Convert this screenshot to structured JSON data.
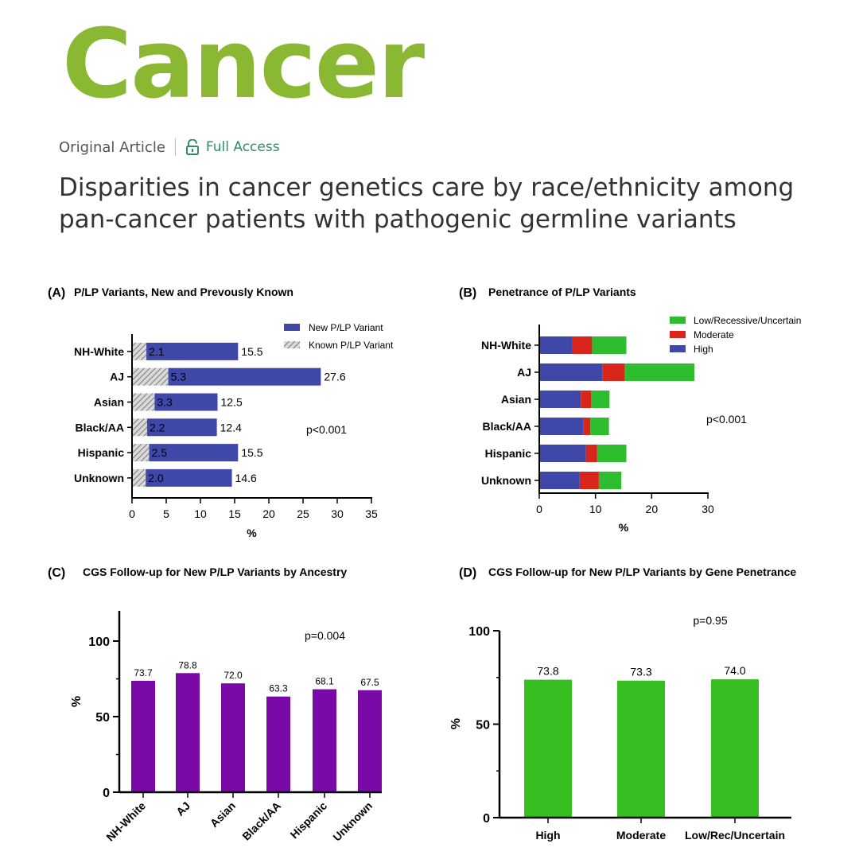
{
  "journal": {
    "name": "Cancer",
    "color": "#8ab833"
  },
  "article": {
    "type": "Original Article",
    "access": "Full Access",
    "access_color": "#2e8b6e",
    "access_icon": "lock-open-icon",
    "title": "Disparities in cancer genetics care by race/ethnicity among pan-cancer patients with pathogenic germline variants"
  },
  "chart_data": [
    {
      "panel": "(A)",
      "type": "bar",
      "orientation": "horizontal",
      "stacked": true,
      "title": "P/LP Variants, New and Prevously Known",
      "categories": [
        "NH-White",
        "AJ",
        "Asian",
        "Black/AA",
        "Hispanic",
        "Unknown"
      ],
      "series": [
        {
          "name": "Known P/LP Variant",
          "values": [
            2.1,
            5.3,
            3.3,
            2.2,
            2.5,
            2.0
          ],
          "color": "#b0b0b0",
          "pattern": "hatch"
        },
        {
          "name": "New P/LP Variant",
          "values": [
            13.4,
            22.3,
            9.2,
            10.2,
            13.0,
            12.6
          ],
          "color": "#3f48a8"
        }
      ],
      "bar_labels": [
        "2.1",
        "5.3",
        "3.3",
        "2.2",
        "2.5",
        "2.0"
      ],
      "total_labels": [
        "15.5",
        "27.6",
        "12.5",
        "12.4",
        "15.5",
        "14.6"
      ],
      "xlabel": "%",
      "xlim": [
        0,
        35
      ],
      "xticks": [
        "0",
        "5",
        "10",
        "15",
        "20",
        "25",
        "30",
        "35"
      ],
      "annotation": "p<0.001",
      "legend": "top-right"
    },
    {
      "panel": "(B)",
      "type": "bar",
      "orientation": "horizontal",
      "stacked": true,
      "title": "Penetrance of P/LP Variants",
      "categories": [
        "NH-White",
        "AJ",
        "Asian",
        "Black/AA",
        "Hispanic",
        "Unknown"
      ],
      "series": [
        {
          "name": "High",
          "values": [
            5.8,
            11.2,
            7.4,
            7.8,
            8.3,
            7.2
          ],
          "color": "#3f48a8"
        },
        {
          "name": "Moderate",
          "values": [
            3.6,
            4.0,
            1.8,
            1.3,
            2.0,
            3.4
          ],
          "color": "#d9261c"
        },
        {
          "name": "Low/Recessive/Uncertain",
          "values": [
            6.1,
            12.4,
            3.3,
            3.3,
            5.2,
            4.0
          ],
          "color": "#2ebd2e"
        }
      ],
      "xlabel": "%",
      "xlim": [
        0,
        30
      ],
      "xticks": [
        "0",
        "10",
        "20",
        "30"
      ],
      "annotation": "p<0.001",
      "legend": "top-right"
    },
    {
      "panel": "(C)",
      "type": "bar",
      "title": "CGS Follow-up for New P/LP Variants by Ancestry",
      "categories": [
        "NH-White",
        "AJ",
        "Asian",
        "Black/AA",
        "Hispanic",
        "Unknown"
      ],
      "values": [
        73.7,
        78.8,
        72.0,
        63.3,
        68.1,
        67.5
      ],
      "value_labels": [
        "73.7",
        "78.8",
        "72.0",
        "63.3",
        "68.1",
        "67.5"
      ],
      "color": "#7a0aa8",
      "ylabel": "%",
      "ylim": [
        0,
        120
      ],
      "yticks": [
        "0",
        "50",
        "100"
      ],
      "annotation": "p=0.004"
    },
    {
      "panel": "(D)",
      "type": "bar",
      "title": "CGS Follow-up for New P/LP Variants by Gene Penetrance",
      "categories": [
        "High",
        "Moderate",
        "Low/Rec/Uncertain"
      ],
      "values": [
        73.8,
        73.3,
        74.0
      ],
      "value_labels": [
        "73.8",
        "73.3",
        "74.0"
      ],
      "color": "#36bd1f",
      "ylabel": "%",
      "ylim": [
        0,
        100
      ],
      "yticks": [
        "0",
        "50",
        "100"
      ],
      "annotation": "p=0.95"
    }
  ]
}
